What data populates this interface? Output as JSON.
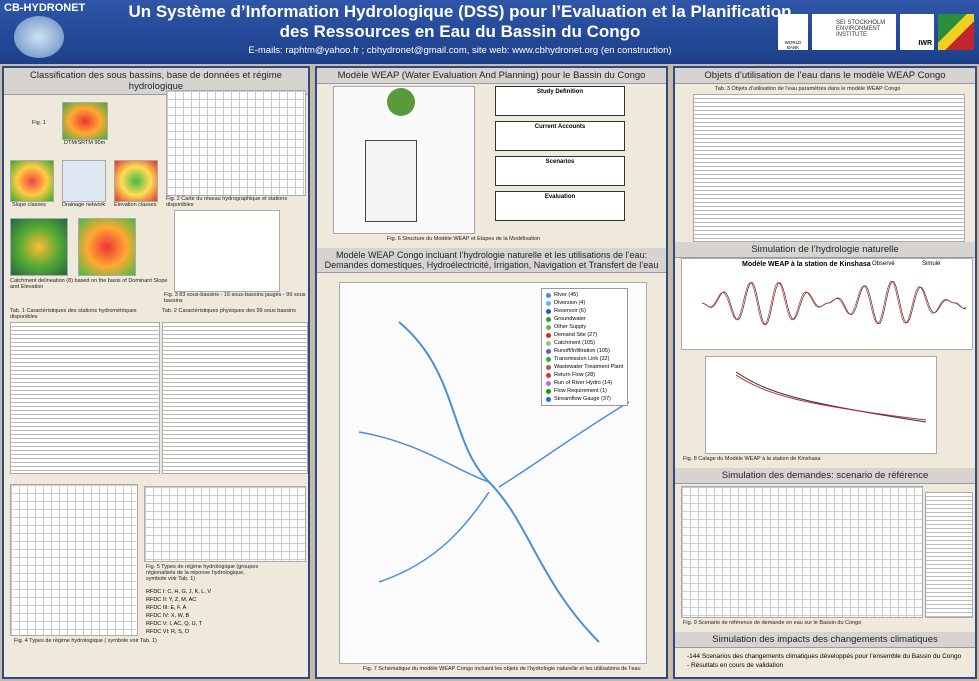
{
  "header": {
    "logo_text": "CB-HYDRONET",
    "title_line1": "Un Système d’Information Hydrologique (DSS) pour l’Evaluation et  la Planification",
    "title_line2": "des Ressources  en Eau du Bassin du Congo",
    "contacts": "E-mails: raphtm@yahoo.fr  ; cbhydronet@gmail.com,     site web: www.cbhydronet.org (en construction)",
    "partner_logos": [
      "WORLD BANK",
      "SEI STOCKHOLM ENVIRONMENT INSTITUTE",
      "IWR"
    ]
  },
  "left_panel": {
    "title": "Classification des sous bassins, base de données et régime hydrologique",
    "fig1": "Fig. 1",
    "dtm": "DTM/SRTM 90m",
    "slope": "Slope classes",
    "drainage": "Drainage network",
    "elevation": "Elevation classes",
    "catchment": "Catchment delineation (8) based on the basis of Dominant Slope and Elevation",
    "fig2": "Fig. 2 Carte du réseau hydrographique et stations disponibles",
    "fig3": "Fig. 3 83 sous-bassins - 16 sous-bassins jaugés - 99 sous bassins",
    "tab1": "Tab. 1 Caractéristiques des stations  hydrométriques disponibles",
    "tab2": "Tab. 2 Caractéristiques physiques des 99 sous bassins",
    "fig5": "Fig. 5 Types de régime hydrologique (groupes régionalisés de la réponse hydrologique, symbole voir Tab. 1)",
    "rfdc": [
      "RFDC I:  C, H, G, J, K, L, V",
      "RFDC II:  Y, Z, M, AC",
      "RFDC III:  E, F, A",
      "RFDC IV:  X, W, B",
      "RFDC V:  I, AC, Q, U, T",
      "RFDC VI:  R, S, O"
    ],
    "fig4": "Fig. 4 Types de régime hydrologique ( symbole voir Tab. 1)"
  },
  "middle_panel": {
    "title": "Modèle WEAP (Water Evaluation And Planning) pour le Bassin du Congo",
    "steps": [
      "Study Definition",
      "Current Accounts",
      "Scenarios",
      "Evaluation"
    ],
    "fig6": "Fig. 6 Structure du Modèle WEAP et Etapes de la Modélisation",
    "title2": "Modèle WEAP  Congo incluant l’hydrologie naturelle et les utilisations de l’eau:",
    "title2b": "Demandes domestiques, Hydroélectricité, Irrigation, Navigation et Transfert de l’eau",
    "legend": [
      "River (45)",
      "Diversion (4)",
      "Reservoir (6)",
      "Groundwater",
      "Other Supply",
      "Demand Site (27)",
      "Catchment (105)",
      "Runoff/Infiltration (105)",
      "Transmission Link (32)",
      "Wastewater Treatment Plant",
      "Return Flow (28)",
      "Run of River Hydro (14)",
      "Flow Requirement (1)",
      "Streamflow Gauge (37)"
    ],
    "fig7": "Fig. 7 Schématique du modèle WEAP Congo incluant les objets de l’hydrologie naturelle et les utilisations de l’eau"
  },
  "right_panel": {
    "title": "Objets d’utilisation de l’eau dans le modèle WEAP Congo",
    "tab3": "Tab. 3  Objets d’utilisation  de l’eau  paramétrés dans le modèle WEAP Congo",
    "sim_title": "Simulation  de l’hydrologie naturelle",
    "chart_title": "Modèle WEAP à la station de Kinshasa",
    "observed": "Observé",
    "simulated": "Simulé",
    "fig8": "Fig. 8  Calage du Modèle WEAP à la station de Kinshasa",
    "demand_title": "Simulation des demandes: scenario de référence",
    "fig9": "Fig. 9  Scenario de référence de demande en eau sur le Bassin du Congo",
    "climate_title": "Simulation des impacts des changements climatiques",
    "climate_lines": [
      "-144 Scenarios des changements climatiques développés  pour l’ensemble du Bassin du Congo",
      "- Résultats en cours de validation"
    ]
  }
}
